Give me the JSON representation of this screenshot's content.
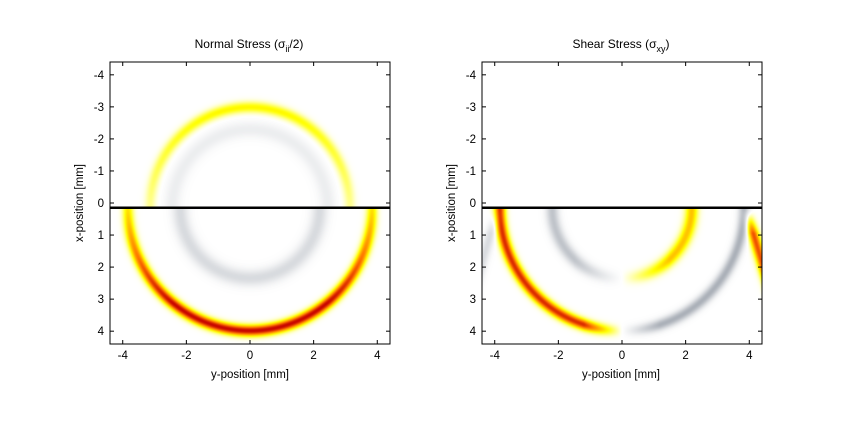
{
  "chart_data": [
    {
      "type": "heatmap",
      "title": "Normal Stress (σ",
      "title_sub": "ii",
      "title_tail": "/2)",
      "xlabel": "y-position [mm]",
      "ylabel": "x-position [mm]",
      "xlim": [
        -4.4,
        4.4
      ],
      "ylim": [
        -4.4,
        4.4
      ],
      "y_reversed": true,
      "xticks": [
        -4,
        -2,
        0,
        2,
        4
      ],
      "yticks": [
        -4,
        -3,
        -2,
        -1,
        0,
        1,
        2,
        3,
        4
      ],
      "surface_line_x": 0.15,
      "colormap": "hot / white / bone",
      "wavefronts": [
        {
          "kind": "compression",
          "center_y": 0.0,
          "center_x": 0.15,
          "radius": 3.85,
          "half": "lower",
          "peak": 1.0
        },
        {
          "kind": "tension",
          "center_y": 0.0,
          "center_x": 0.15,
          "radius": 2.2,
          "half": "lower",
          "peak": 0.25
        },
        {
          "kind": "compression",
          "center_y": 0.0,
          "center_x": 0.15,
          "radius": 3.15,
          "half": "upper",
          "peak": 0.35
        },
        {
          "kind": "tension",
          "center_y": 0.0,
          "center_x": 0.15,
          "radius": 2.45,
          "half": "upper",
          "peak": 0.12
        }
      ]
    },
    {
      "type": "heatmap",
      "title": "Shear Stress (σ",
      "title_sub": "xy",
      "title_tail": ")",
      "xlabel": "y-position [mm]",
      "ylabel": "x-position [mm]",
      "xlim": [
        -4.4,
        4.4
      ],
      "ylim": [
        -4.4,
        4.4
      ],
      "y_reversed": true,
      "xticks": [
        -4,
        -2,
        0,
        2,
        4
      ],
      "yticks": [
        -4,
        -3,
        -2,
        -1,
        0,
        1,
        2,
        3,
        4
      ],
      "surface_line_x": 0.15,
      "colormap": "hot / white / bone",
      "wavefronts": [
        {
          "kind": "antisymmetric",
          "center_y": 0.0,
          "center_x": 0.15,
          "radius": 3.85,
          "half": "lower",
          "peak": 0.9
        },
        {
          "kind": "antisymmetric_inv",
          "center_y": 0.0,
          "center_x": 0.15,
          "radius": 2.2,
          "half": "lower",
          "peak": 0.45
        },
        {
          "kind": "headwave",
          "center_y": 0.0,
          "center_x": 0.15,
          "radius": 4.3,
          "half": "lower",
          "peak": 0.8
        }
      ]
    }
  ]
}
